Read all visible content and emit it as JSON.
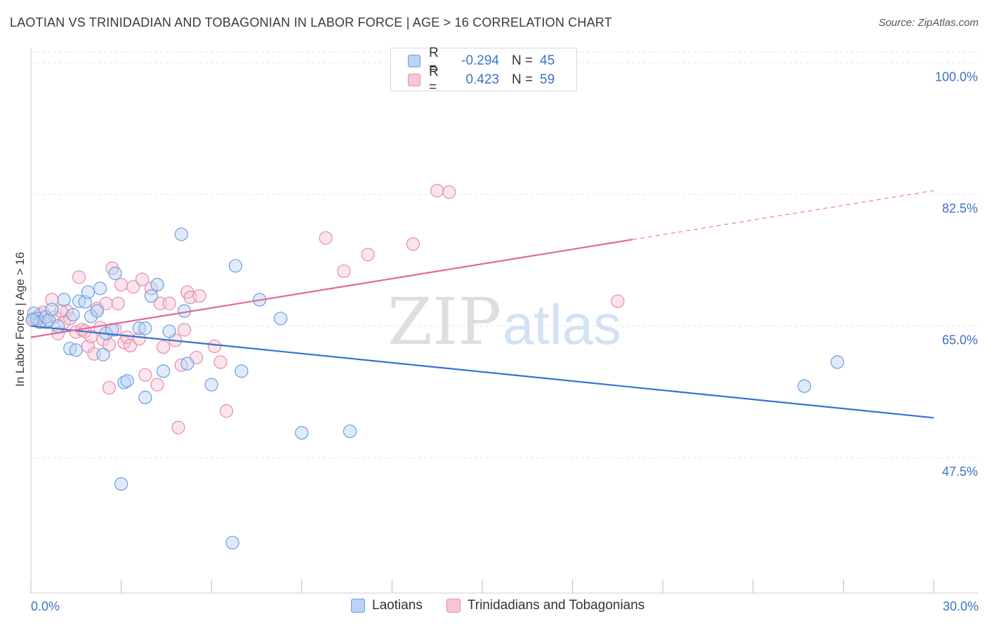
{
  "header": {
    "title": "LAOTIAN VS TRINIDADIAN AND TOBAGONIAN IN LABOR FORCE | AGE > 16 CORRELATION CHART",
    "source": "Source: ZipAtlas.com"
  },
  "legend": {
    "rows": [
      {
        "r_label": "R =",
        "r_value": "-0.294",
        "n_label": "N =",
        "n_value": "45"
      },
      {
        "r_label": "R =",
        "r_value": "0.423",
        "n_label": "N =",
        "n_value": "59"
      }
    ]
  },
  "watermark": {
    "zip": "ZIP",
    "atlas": "atlas"
  },
  "colors": {
    "blue_fill": "#b9d2f5",
    "blue_stroke": "#6a9ee0",
    "blue_line": "#3474d0",
    "pink_fill": "#f7c6d6",
    "pink_stroke": "#e88aa8",
    "pink_line": "#e06a93",
    "grid": "#e4e4e4",
    "tick_text": "#3b73c4"
  },
  "chart_data": {
    "type": "scatter",
    "title": "LAOTIAN VS TRINIDADIAN AND TOBAGONIAN IN LABOR FORCE | AGE > 16 CORRELATION CHART",
    "xlabel": "",
    "ylabel": "In Labor Force | Age > 16",
    "xlim": [
      0,
      30
    ],
    "ylim": [
      29.5,
      102
    ],
    "x_tick_labels": [
      "0.0%",
      "30.0%"
    ],
    "y_ticks": [
      47.5,
      65.0,
      82.5,
      100.0
    ],
    "y_tick_labels": [
      "47.5%",
      "65.0%",
      "82.5%",
      "100.0%"
    ],
    "grid": true,
    "series": [
      {
        "name": "Laotians",
        "color": "#6a9ee0",
        "trend": {
          "x": [
            0,
            30
          ],
          "y": [
            65.0,
            52.8
          ]
        },
        "points": [
          [
            0.1,
            66.7
          ],
          [
            0.2,
            66.0
          ],
          [
            0.3,
            65.5
          ],
          [
            0.5,
            66.2
          ],
          [
            0.6,
            65.8
          ],
          [
            0.7,
            67.2
          ],
          [
            0.9,
            65.0
          ],
          [
            1.1,
            68.5
          ],
          [
            1.3,
            62.0
          ],
          [
            1.4,
            66.5
          ],
          [
            1.5,
            61.8
          ],
          [
            1.6,
            68.3
          ],
          [
            1.8,
            68.2
          ],
          [
            1.9,
            69.5
          ],
          [
            2.0,
            66.3
          ],
          [
            2.2,
            67.0
          ],
          [
            2.3,
            70.0
          ],
          [
            2.4,
            61.2
          ],
          [
            2.5,
            64.0
          ],
          [
            2.7,
            64.5
          ],
          [
            2.8,
            72.0
          ],
          [
            3.1,
            57.5
          ],
          [
            3.2,
            57.7
          ],
          [
            3.6,
            64.7
          ],
          [
            3.8,
            64.7
          ],
          [
            3.8,
            55.5
          ],
          [
            4.0,
            69.0
          ],
          [
            4.2,
            70.5
          ],
          [
            4.4,
            59.0
          ],
          [
            4.6,
            64.3
          ],
          [
            5.0,
            77.2
          ],
          [
            5.1,
            67.0
          ],
          [
            5.2,
            60.0
          ],
          [
            6.0,
            57.2
          ],
          [
            6.8,
            73.0
          ],
          [
            7.0,
            59.0
          ],
          [
            7.6,
            68.5
          ],
          [
            8.3,
            66.0
          ],
          [
            9.0,
            50.8
          ],
          [
            10.6,
            51.0
          ],
          [
            3.0,
            44.0
          ],
          [
            6.7,
            36.2
          ],
          [
            25.7,
            57.0
          ],
          [
            26.8,
            60.2
          ],
          [
            0.05,
            65.8
          ]
        ]
      },
      {
        "name": "Trinidadians and Tobagonians",
        "color": "#e88aa8",
        "trend": {
          "x": [
            0,
            20
          ],
          "y": [
            63.5,
            76.5
          ]
        },
        "trend_extension": {
          "x": [
            20,
            30
          ],
          "y": [
            76.5,
            83.0
          ]
        },
        "points": [
          [
            0.1,
            66.0
          ],
          [
            0.3,
            66.5
          ],
          [
            0.5,
            65.5
          ],
          [
            0.7,
            68.5
          ],
          [
            0.8,
            66.2
          ],
          [
            0.9,
            64.0
          ],
          [
            1.1,
            65.5
          ],
          [
            1.2,
            67.0
          ],
          [
            1.3,
            66.0
          ],
          [
            1.5,
            64.2
          ],
          [
            1.6,
            71.5
          ],
          [
            1.7,
            64.5
          ],
          [
            1.8,
            64.3
          ],
          [
            1.9,
            62.3
          ],
          [
            2.0,
            63.6
          ],
          [
            2.1,
            61.3
          ],
          [
            2.2,
            67.3
          ],
          [
            2.4,
            63.2
          ],
          [
            2.5,
            68.0
          ],
          [
            2.6,
            62.5
          ],
          [
            2.6,
            56.8
          ],
          [
            2.7,
            72.7
          ],
          [
            2.8,
            64.5
          ],
          [
            2.9,
            68.0
          ],
          [
            3.0,
            70.5
          ],
          [
            3.1,
            62.8
          ],
          [
            3.2,
            63.5
          ],
          [
            3.3,
            62.4
          ],
          [
            3.4,
            70.2
          ],
          [
            3.6,
            63.3
          ],
          [
            3.7,
            71.2
          ],
          [
            3.8,
            58.5
          ],
          [
            4.0,
            70.0
          ],
          [
            4.2,
            57.2
          ],
          [
            4.3,
            68.0
          ],
          [
            4.4,
            62.2
          ],
          [
            4.6,
            68.0
          ],
          [
            4.8,
            63.1
          ],
          [
            4.9,
            51.5
          ],
          [
            5.0,
            59.8
          ],
          [
            5.1,
            64.5
          ],
          [
            5.2,
            69.5
          ],
          [
            5.3,
            68.8
          ],
          [
            5.5,
            60.8
          ],
          [
            5.6,
            69.0
          ],
          [
            6.1,
            62.3
          ],
          [
            6.3,
            60.2
          ],
          [
            6.5,
            53.7
          ],
          [
            9.8,
            76.7
          ],
          [
            10.4,
            72.3
          ],
          [
            11.2,
            74.5
          ],
          [
            12.7,
            75.9
          ],
          [
            13.5,
            83.0
          ],
          [
            13.9,
            82.8
          ],
          [
            19.5,
            68.3
          ],
          [
            0.2,
            65.7
          ],
          [
            0.4,
            66.8
          ],
          [
            1.0,
            67.0
          ],
          [
            2.3,
            64.8
          ]
        ]
      }
    ],
    "legend": [
      "Laotians",
      "Trinidadians and Tobagonians"
    ]
  }
}
